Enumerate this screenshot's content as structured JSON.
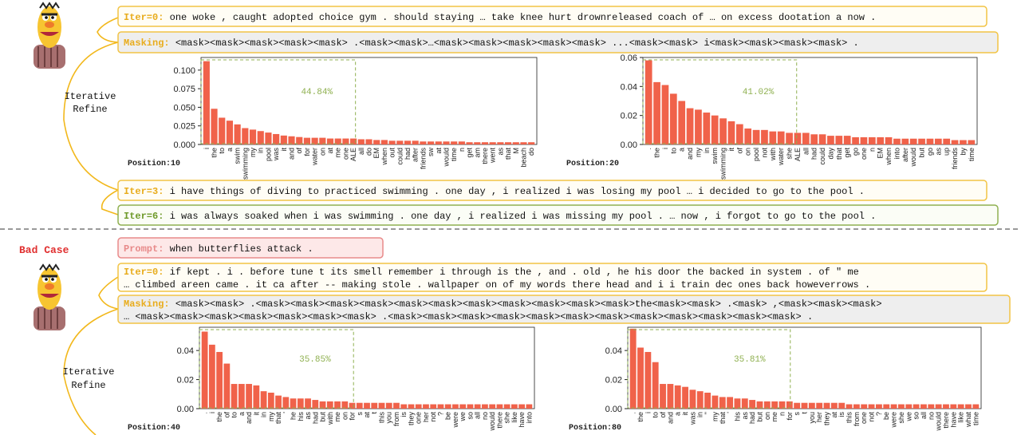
{
  "good_case": {
    "iter0": {
      "label": "Iter=0:",
      "text": "one woke , caught adopted choice gym . should staying … take knee hurt drownreleased coach of … on excess dootation a now ."
    },
    "masking": {
      "label": "Masking:",
      "text": "<mask><mask><mask><mask><mask> .<mask><mask>…<mask><mask><mask><mask><mask> ...<mask><mask> i<mask><mask><mask><mask> ."
    },
    "refine_label": [
      "Iterative",
      "Refine"
    ],
    "iter3": {
      "label": "Iter=3:",
      "text": "i have things of diving to practiced swimming . one day , i realized i was losing my pool … i decided to go to the pool ."
    },
    "iter6": {
      "label": "Iter=6:",
      "text": "i was always soaked when i was swimming . one day , i realized i was missing my pool . … now , i forgot to go to the pool ."
    }
  },
  "bad_case": {
    "title": "Bad Case",
    "prompt": {
      "label": "Prompt:",
      "text": "when butterflies attack ."
    },
    "iter0": {
      "label": "Iter=0:",
      "lines": [
        "if kept . i . before tune t its smell remember i through is the , and . old , he his door the backed in system . of \" me",
        "… climbed areen came . it ca after -- making stole . wallpaper on of my words there head and i i train dec ones back howeverrows ."
      ]
    },
    "masking": {
      "label": "Masking:",
      "lines": [
        "<mask><mask> .<mask><mask><mask><mask><mask><mask><mask><mask><mask><mask><mask>the<mask><mask> .<mask> ,<mask><mask><mask>",
        "… <mask><mask><mask><mask><mask><mask><mask> .<mask><mask><mask><mask><mask><mask><mask><mask><mask><mask><mask><mask> ."
      ]
    },
    "refine_label": [
      "Iterative",
      "Refine"
    ]
  },
  "chart_data": [
    {
      "type": "bar",
      "label": "Position:10",
      "annotation": "44.84%",
      "color": "#f0624a",
      "categories": [
        "i",
        "the",
        "to",
        "a",
        "swim",
        "swimming",
        "my",
        "in",
        "pool",
        "was",
        "it",
        "and",
        "of",
        "for",
        "water",
        "on",
        "at",
        "me",
        "one",
        "ALE",
        "all",
        "do",
        "EM",
        "when",
        "out",
        "could",
        "had",
        "after",
        "friends",
        "sw",
        "at",
        "would",
        "time",
        "n",
        "get",
        "am",
        "there",
        "went",
        "as",
        "that",
        "M",
        "beach",
        "do"
      ],
      "values": [
        0.112,
        0.048,
        0.036,
        0.032,
        0.027,
        0.022,
        0.02,
        0.018,
        0.016,
        0.014,
        0.012,
        0.011,
        0.01,
        0.009,
        0.009,
        0.009,
        0.008,
        0.008,
        0.008,
        0.008,
        0.007,
        0.007,
        0.006,
        0.006,
        0.005,
        0.005,
        0.005,
        0.005,
        0.004,
        0.004,
        0.004,
        0.004,
        0.004,
        0.004,
        0.003,
        0.003,
        0.003,
        0.003,
        0.003,
        0.003,
        0.003,
        0.003,
        0.003
      ],
      "ylim": [
        0,
        0.117
      ],
      "yticks": [
        {
          "value": 0,
          "label": "0.000"
        },
        {
          "value": 0.025,
          "label": "0.025"
        },
        {
          "value": 0.05,
          "label": "0.050"
        },
        {
          "value": 0.075,
          "label": "0.075"
        },
        {
          "value": 0.1,
          "label": "0.100"
        }
      ]
    },
    {
      "type": "bar",
      "label": "Position:20",
      "annotation": "41.02%",
      "color": "#f0624a",
      "categories": [
        ".",
        "the",
        "i",
        "to",
        "a",
        "and",
        "my",
        "in",
        "swim",
        "swimming",
        "it",
        "of",
        "on",
        "pool",
        "not",
        "with",
        "water",
        "she",
        "ALE",
        "all",
        "had",
        "could",
        "day",
        "that",
        "get",
        "go",
        "one",
        "n",
        "EM",
        "when",
        "into",
        "after",
        "would",
        "but",
        "go",
        "as",
        "up",
        "friends",
        "by",
        "time"
      ],
      "values": [
        0.058,
        0.043,
        0.041,
        0.035,
        0.03,
        0.025,
        0.024,
        0.022,
        0.02,
        0.018,
        0.016,
        0.014,
        0.011,
        0.01,
        0.01,
        0.009,
        0.009,
        0.008,
        0.008,
        0.008,
        0.007,
        0.007,
        0.006,
        0.006,
        0.006,
        0.005,
        0.005,
        0.005,
        0.005,
        0.005,
        0.004,
        0.004,
        0.004,
        0.004,
        0.004,
        0.004,
        0.004,
        0.003,
        0.003,
        0.003
      ],
      "ylim": [
        0,
        0.06
      ],
      "yticks": [
        {
          "value": 0,
          "label": "0.00"
        },
        {
          "value": 0.02,
          "label": "0.02"
        },
        {
          "value": 0.04,
          "label": "0.04"
        },
        {
          "value": 0.06,
          "label": "0.06"
        }
      ]
    },
    {
      "type": "bar",
      "label": "Position:40",
      "annotation": "35.85%",
      "color": "#f0624a",
      "categories": [
        ".",
        "i",
        "the",
        "of",
        "to",
        "a",
        "and",
        "it",
        "in",
        "my",
        "that",
        "'",
        "he",
        "his",
        "as",
        "had",
        "but",
        "with",
        "me",
        "on",
        "for",
        "s",
        "at",
        "t",
        "this",
        "you",
        "from",
        "is",
        "they",
        "one",
        "her",
        "not",
        "?",
        "be",
        "were",
        "we",
        "so",
        "all",
        "no",
        "would",
        "there",
        "she",
        "like",
        "have",
        "into"
      ],
      "values": [
        0.053,
        0.044,
        0.039,
        0.031,
        0.017,
        0.017,
        0.017,
        0.016,
        0.012,
        0.011,
        0.009,
        0.008,
        0.007,
        0.007,
        0.007,
        0.006,
        0.005,
        0.005,
        0.005,
        0.005,
        0.004,
        0.004,
        0.004,
        0.004,
        0.004,
        0.004,
        0.004,
        0.003,
        0.003,
        0.003,
        0.003,
        0.003,
        0.003,
        0.003,
        0.003,
        0.003,
        0.003,
        0.003,
        0.003,
        0.003,
        0.003,
        0.003,
        0.003,
        0.003,
        0.003
      ],
      "ylim": [
        0,
        0.056
      ],
      "yticks": [
        {
          "value": 0,
          "label": "0.00"
        },
        {
          "value": 0.02,
          "label": "0.02"
        },
        {
          "value": 0.04,
          "label": "0.04"
        }
      ]
    },
    {
      "type": "bar",
      "label": "Position:80",
      "annotation": "35.81%",
      "color": "#f0624a",
      "categories": [
        ".",
        "the",
        "i",
        "to",
        "of",
        "and",
        "a",
        "it",
        "was",
        "in",
        "\"",
        "my",
        "that",
        "'",
        "his",
        "as",
        "had",
        "but",
        "on",
        "me",
        "n",
        "for",
        "s",
        "t",
        "you",
        "her",
        "they",
        "at",
        "is",
        "this",
        "from",
        "one",
        "not",
        "?",
        "be",
        "were",
        "she",
        "we",
        "so",
        "all",
        "no",
        "would",
        "there",
        "have",
        "like",
        "what",
        "time"
      ],
      "values": [
        0.055,
        0.042,
        0.039,
        0.032,
        0.017,
        0.017,
        0.016,
        0.015,
        0.013,
        0.012,
        0.011,
        0.009,
        0.008,
        0.008,
        0.007,
        0.007,
        0.006,
        0.005,
        0.005,
        0.005,
        0.005,
        0.005,
        0.004,
        0.004,
        0.004,
        0.004,
        0.004,
        0.004,
        0.004,
        0.003,
        0.003,
        0.003,
        0.003,
        0.003,
        0.003,
        0.003,
        0.003,
        0.003,
        0.003,
        0.003,
        0.003,
        0.003,
        0.003,
        0.003,
        0.003,
        0.003,
        0.003
      ],
      "ylim": [
        0,
        0.056
      ],
      "yticks": [
        {
          "value": 0,
          "label": "0.00"
        },
        {
          "value": 0.02,
          "label": "0.02"
        },
        {
          "value": 0.04,
          "label": "0.04"
        }
      ]
    }
  ]
}
